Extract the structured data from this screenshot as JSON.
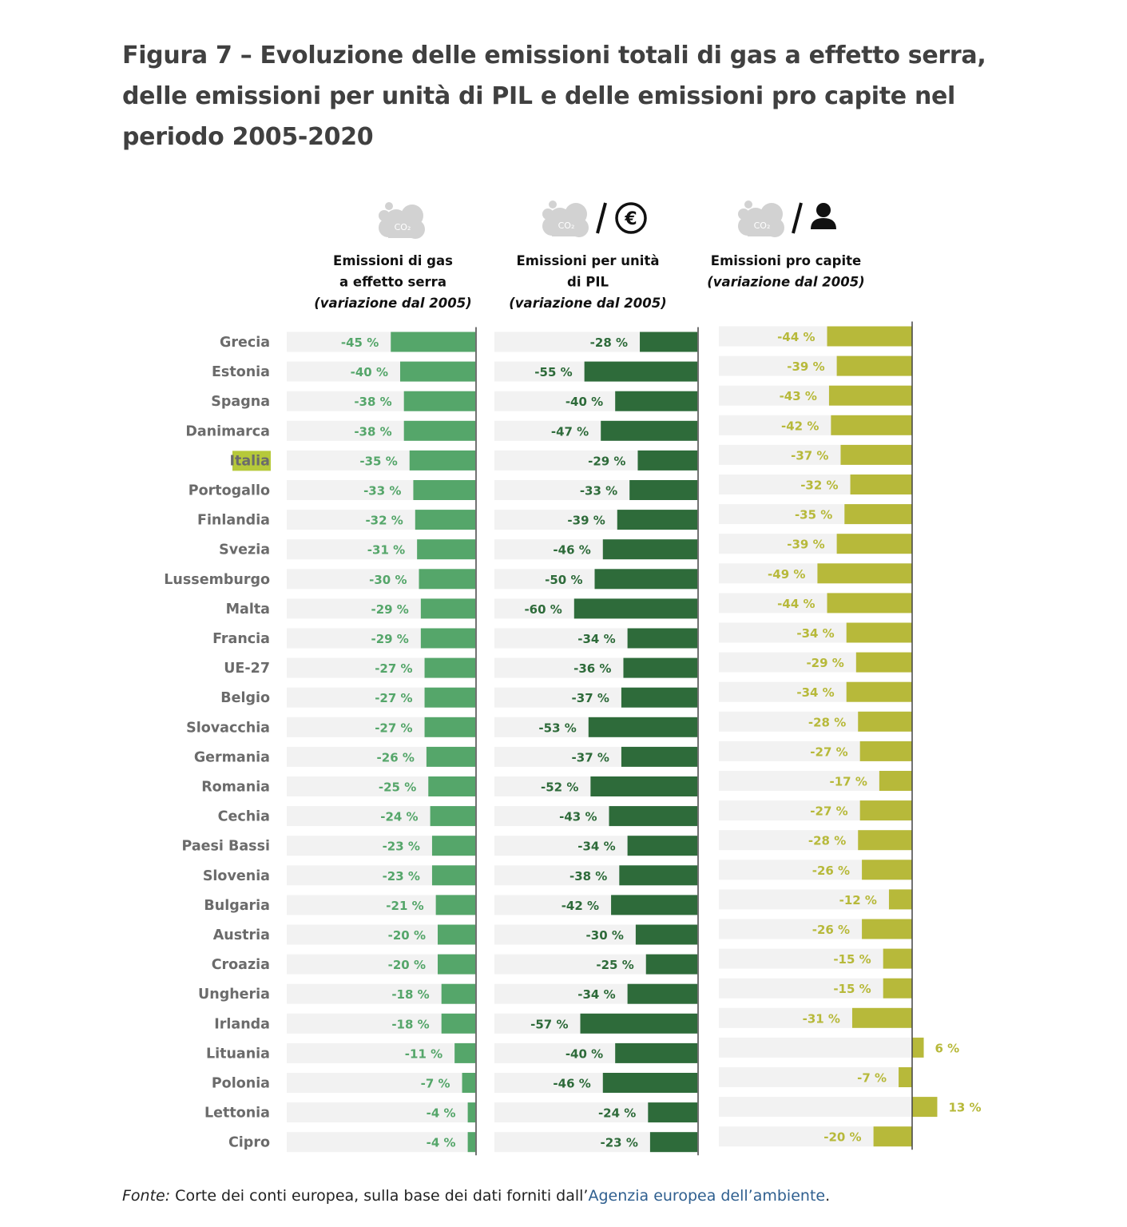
{
  "title": "Figura 7 – Evoluzione delle emissioni totali di gas a effetto serra, delle emissioni per unità di PIL e delle emissioni pro capite nel periodo 2005-2020",
  "source": {
    "prefix": "Fonte:",
    "text": " Corte dei conti europea, sulla base dei dati forniti dall’",
    "link": "Agenzia europea dell’ambiente",
    "suffix": "."
  },
  "highlight": "Italia",
  "colors": {
    "panel1": "#55a66a",
    "panel2": "#2e6b3a",
    "panel3": "#b7b93a",
    "track": "#f2f2f2",
    "highlight_bg": "#b6c93a",
    "cloud": "#d2d2d2"
  },
  "icons": [
    "cloud-co2-icon",
    "euro-icon",
    "person-icon"
  ],
  "chart_data": [
    {
      "type": "bar",
      "header": [
        "Emissioni di gas",
        "a effetto serra"
      ],
      "subheader": "(variazione dal 2005)",
      "unit": "%",
      "categories": [
        "Grecia",
        "Estonia",
        "Spagna",
        "Danimarca",
        "Italia",
        "Portogallo",
        "Finlandia",
        "Svezia",
        "Lussemburgo",
        "Malta",
        "Francia",
        "UE-27",
        "Belgio",
        "Slovacchia",
        "Germania",
        "Romania",
        "Cechia",
        "Paesi Bassi",
        "Slovenia",
        "Bulgaria",
        "Austria",
        "Croazia",
        "Ungheria",
        "Irlanda",
        "Lituania",
        "Polonia",
        "Lettonia",
        "Cipro"
      ],
      "values": [
        -45,
        -40,
        -38,
        -38,
        -35,
        -33,
        -32,
        -31,
        -30,
        -29,
        -29,
        -27,
        -27,
        -27,
        -26,
        -25,
        -24,
        -23,
        -23,
        -21,
        -20,
        -20,
        -18,
        -18,
        -11,
        -7,
        -4,
        -4
      ]
    },
    {
      "type": "bar",
      "header": [
        "Emissioni per unità",
        "di PIL"
      ],
      "subheader": "(variazione dal 2005)",
      "unit": "%",
      "categories": [
        "Grecia",
        "Estonia",
        "Spagna",
        "Danimarca",
        "Italia",
        "Portogallo",
        "Finlandia",
        "Svezia",
        "Lussemburgo",
        "Malta",
        "Francia",
        "UE-27",
        "Belgio",
        "Slovacchia",
        "Germania",
        "Romania",
        "Cechia",
        "Paesi Bassi",
        "Slovenia",
        "Bulgaria",
        "Austria",
        "Croazia",
        "Ungheria",
        "Irlanda",
        "Lituania",
        "Polonia",
        "Lettonia",
        "Cipro"
      ],
      "values": [
        -28,
        -55,
        -40,
        -47,
        -29,
        -33,
        -39,
        -46,
        -50,
        -60,
        -34,
        -36,
        -37,
        -53,
        -37,
        -52,
        -43,
        -34,
        -38,
        -42,
        -30,
        -25,
        -34,
        -57,
        -40,
        -46,
        -24,
        -23
      ]
    },
    {
      "type": "bar",
      "header": [
        "Emissioni pro capite"
      ],
      "subheader": "(variazione dal 2005)",
      "unit": "%",
      "categories": [
        "Grecia",
        "Estonia",
        "Spagna",
        "Danimarca",
        "Italia",
        "Portogallo",
        "Finlandia",
        "Svezia",
        "Lussemburgo",
        "Malta",
        "Francia",
        "UE-27",
        "Belgio",
        "Slovacchia",
        "Germania",
        "Romania",
        "Cechia",
        "Paesi Bassi",
        "Slovenia",
        "Bulgaria",
        "Austria",
        "Croazia",
        "Ungheria",
        "Irlanda",
        "Lituania",
        "Polonia",
        "Lettonia",
        "Cipro"
      ],
      "values": [
        -44,
        -39,
        -43,
        -42,
        -37,
        -32,
        -35,
        -39,
        -49,
        -44,
        -34,
        -29,
        -34,
        -28,
        -27,
        -17,
        -27,
        -28,
        -26,
        -12,
        -26,
        -15,
        -15,
        -31,
        6,
        -7,
        13,
        -20
      ]
    }
  ]
}
